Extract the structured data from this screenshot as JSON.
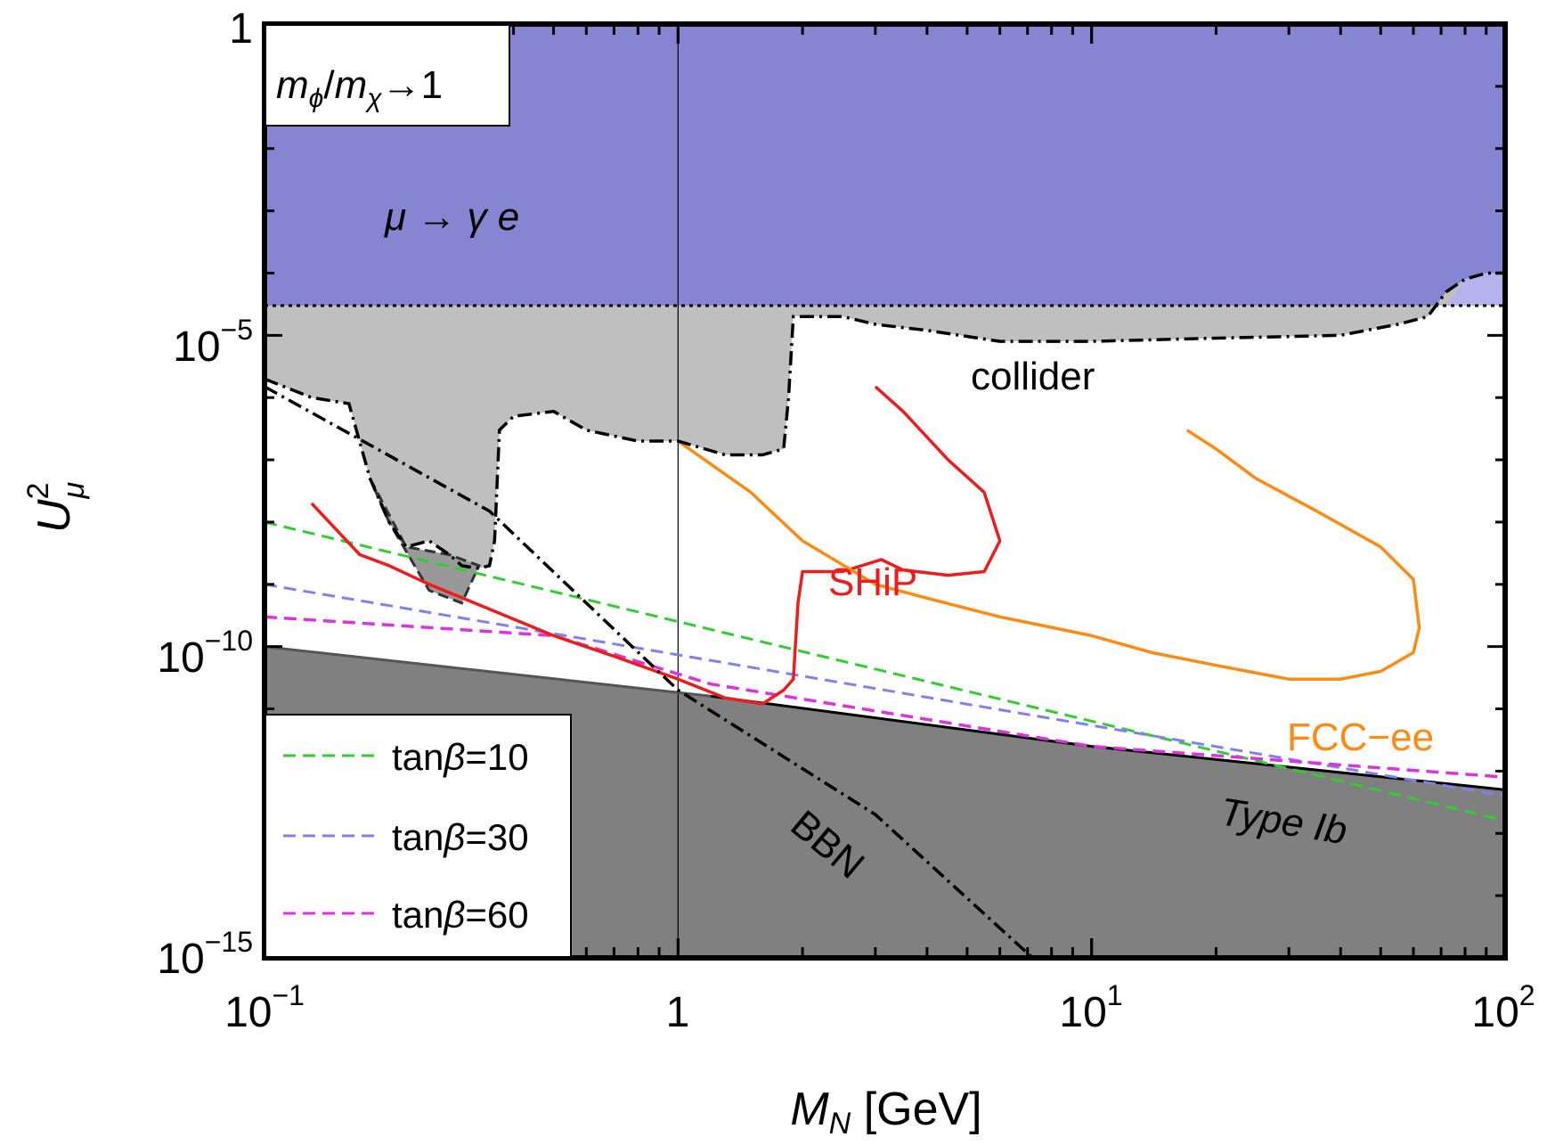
{
  "chart_data": {
    "type": "line",
    "x_scale": "log",
    "y_scale": "log",
    "xlim": [
      0.1,
      100
    ],
    "ylim": [
      1e-15,
      1
    ],
    "xlabel_main": "M",
    "xlabel_sub": "N",
    "xlabel_unit": "[GeV]",
    "ylabel_main": "U",
    "ylabel_sup": "2",
    "ylabel_sub": "μ",
    "x_ticks": [
      {
        "value": 0.1,
        "base": "10",
        "exp": "−1"
      },
      {
        "value": 1,
        "base": "1",
        "exp": ""
      },
      {
        "value": 10,
        "base": "10",
        "exp": "1"
      },
      {
        "value": 100,
        "base": "10",
        "exp": "2"
      }
    ],
    "y_ticks": [
      {
        "value": 1,
        "base": "1",
        "exp": ""
      },
      {
        "value": 1e-05,
        "base": "10",
        "exp": "−5"
      },
      {
        "value": 1e-10,
        "base": "10",
        "exp": "−10"
      },
      {
        "value": 1e-15,
        "base": "10",
        "exp": "−15"
      }
    ],
    "inset_label": {
      "m1": "m",
      "s1": "ϕ",
      "slash": "/",
      "m2": "m",
      "s2": "χ",
      "arrow": "→1"
    },
    "colors": {
      "mu_gamma_e": "#8685d2",
      "mu_gamma_e_light": "#b4b3ee",
      "light_gray": "#bfbfbf",
      "dark_gray": "#808080",
      "ship": "#ee1c1c",
      "fcc": "#ff8a14",
      "tan10": "#33cc33",
      "tan30": "#8080ee",
      "tan60": "#dd33dd"
    },
    "region_labels": {
      "mu_gamma_e": "μ → γ e",
      "collider": "collider",
      "ship": "SHiP",
      "fcc": "FCC−ee",
      "bbn": "BBN",
      "type_ib": "Type Ib"
    },
    "mu_gamma_e_limit": 3e-05,
    "type_ib_line": {
      "x": [
        0.1,
        1.2,
        10,
        100
      ],
      "y": [
        1e-10,
        1.6e-11,
        2.5e-12,
        5e-13
      ]
    },
    "bbn_line": {
      "x": [
        0.1,
        0.35,
        1,
        3,
        7.2
      ],
      "y": [
        1.5e-06,
        1.5e-08,
        2e-11,
        2e-13,
        1e-15
      ]
    },
    "collider_contour": {
      "x": [
        0.1,
        0.13,
        0.16,
        0.18,
        0.2,
        0.22,
        0.25,
        0.28,
        0.3,
        0.33,
        0.35,
        0.36,
        0.37,
        0.4,
        0.5,
        0.6,
        0.8,
        1.0,
        1.3,
        1.6,
        1.8,
        1.85,
        1.9,
        2.5,
        3,
        4,
        6,
        10,
        20,
        40,
        55,
        65,
        72,
        80,
        90,
        100
      ],
      "y": [
        2e-06,
        1e-06,
        8e-07,
        5e-08,
        1e-08,
        4e-09,
        5e-09,
        3e-09,
        2e-09,
        1.8e-09,
        2e-09,
        5e-09,
        3e-07,
        5e-07,
        6e-07,
        3e-07,
        2e-07,
        2e-07,
        1.2e-07,
        1.2e-07,
        1.5e-07,
        1e-06,
        2e-05,
        2e-05,
        1.5e-05,
        1.2e-05,
        8e-06,
        8e-06,
        9e-06,
        1e-05,
        1.5e-05,
        2e-05,
        5e-05,
        8e-05,
        0.0001,
        0.0001
      ]
    },
    "ship_curve": {
      "x": [
        3,
        3.5,
        4.5,
        5.5,
        6,
        5.5,
        4.5,
        3.5,
        3.1,
        2.5,
        2,
        1.95,
        1.9,
        1.8,
        1.6,
        1.3,
        1.0,
        0.7,
        0.5,
        0.35,
        0.25,
        0.2,
        0.17,
        0.13
      ],
      "y": [
        1.5e-06,
        6e-07,
        1e-07,
        3e-08,
        5e-09,
        1.6e-09,
        1.4e-09,
        1.7e-09,
        2.5e-09,
        1.6e-09,
        1.6e-09,
        5e-10,
        3e-11,
        2e-11,
        1.2e-11,
        1.5e-11,
        3e-11,
        7e-11,
        1.5e-10,
        4e-10,
        1e-09,
        2e-09,
        3e-09,
        2e-08
      ]
    },
    "fcc_curve": {
      "x": [
        17,
        20,
        25,
        35,
        50,
        60,
        62,
        60,
        50,
        40,
        30,
        20,
        14,
        10,
        6,
        4,
        3,
        2,
        1.5,
        1
      ],
      "y": [
        3e-07,
        1.5e-07,
        5e-08,
        1.5e-08,
        4e-09,
        1.2e-09,
        2e-10,
        8e-11,
        4e-11,
        3e-11,
        3e-11,
        5e-11,
        8e-11,
        1.5e-10,
        3e-10,
        6e-10,
        1e-09,
        5e-09,
        3e-08,
        2e-07
      ]
    },
    "series": [
      {
        "name": "tanβ=10",
        "color": "#33cc33",
        "x": [
          0.1,
          100
        ],
        "y": [
          1e-08,
          1.6e-13
        ]
      },
      {
        "name": "tanβ=30",
        "color": "#8080ee",
        "x": [
          0.1,
          100
        ],
        "y": [
          1e-09,
          4e-13
        ]
      },
      {
        "name": "tanβ=60",
        "color": "#dd33dd",
        "x": [
          0.1,
          0.5,
          1.2,
          10,
          100
        ],
        "y": [
          3e-10,
          1.5e-10,
          2.5e-11,
          2.5e-12,
          8e-13
        ]
      }
    ],
    "legend": {
      "placement": "bottom-left",
      "entries": [
        {
          "prefix": "tan",
          "greek": "β",
          "suffix": "=10",
          "color": "#33cc33"
        },
        {
          "prefix": "tan",
          "greek": "β",
          "suffix": "=30",
          "color": "#8080ee"
        },
        {
          "prefix": "tan",
          "greek": "β",
          "suffix": "=60",
          "color": "#dd33dd"
        }
      ]
    },
    "grid": false
  }
}
